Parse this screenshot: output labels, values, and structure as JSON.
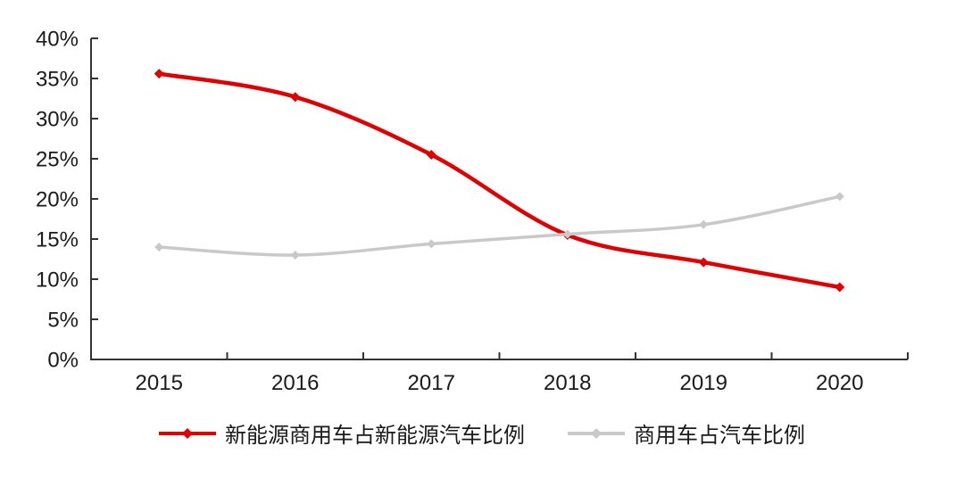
{
  "chart_data": {
    "type": "line",
    "categories": [
      "2015",
      "2016",
      "2017",
      "2018",
      "2019",
      "2020"
    ],
    "series": [
      {
        "name": "新能源商用车占新能源汽车比例",
        "color": "#e00000",
        "line_width": 4.5,
        "marker": "diamond",
        "marker_size": 5.5,
        "values": [
          35.6,
          32.7,
          25.5,
          15.5,
          12.1,
          9.0
        ]
      },
      {
        "name": "商用车占汽车比例",
        "color": "#c9c9c9",
        "line_width": 3.5,
        "marker": "diamond",
        "marker_size": 5,
        "values": [
          14.0,
          13.0,
          14.4,
          15.6,
          16.8,
          20.3
        ]
      }
    ],
    "title": "",
    "xlabel": "",
    "ylabel": "",
    "ylim": [
      0,
      40
    ],
    "ytick_step": 5,
    "ytick_labels": [
      "0%",
      "5%",
      "10%",
      "15%",
      "20%",
      "25%",
      "30%",
      "35%",
      "40%"
    ],
    "grid": false,
    "smooth": true,
    "legend_position": "bottom"
  },
  "colors": {
    "axis": "#333333",
    "text": "#1a1a1a",
    "background": "#ffffff"
  }
}
